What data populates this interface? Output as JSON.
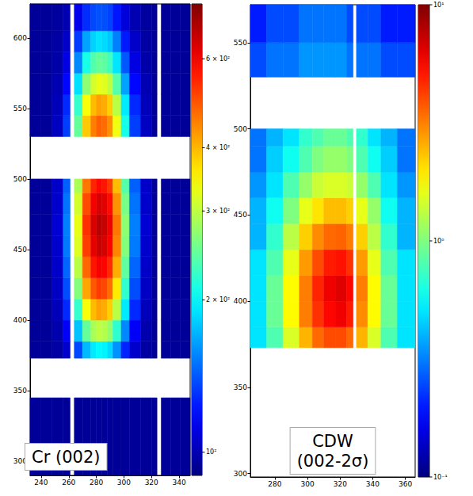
{
  "chart_data": [
    {
      "type": "heatmap",
      "annotation": "Cr (002)",
      "xlim": [
        232,
        348
      ],
      "xticks": [
        240,
        260,
        280,
        300,
        320,
        340
      ],
      "ylim": [
        290,
        624
      ],
      "yticks": [
        300,
        350,
        400,
        450,
        500,
        550,
        600
      ],
      "x_edges": [
        232,
        240,
        248,
        256,
        261,
        264,
        270,
        276,
        280,
        284,
        288,
        292,
        298,
        304,
        312,
        320,
        324,
        327,
        334,
        341,
        348
      ],
      "y_edges": [
        290,
        345,
        373,
        385,
        400,
        415,
        430,
        445,
        460,
        475,
        490,
        500,
        530,
        545,
        560,
        575,
        590,
        605,
        624
      ],
      "cells": [
        [
          95,
          95,
          95,
          95,
          null,
          95,
          95,
          95,
          95,
          95,
          95,
          95,
          95,
          95,
          95,
          95,
          null,
          95,
          95,
          95
        ],
        [
          null,
          null,
          null,
          null,
          null,
          null,
          null,
          null,
          null,
          null,
          null,
          null,
          null,
          null,
          null,
          null,
          null,
          null,
          null,
          null
        ],
        [
          95,
          95,
          97,
          106,
          null,
          137,
          174,
          193,
          200,
          197,
          187,
          160,
          127,
          106,
          97,
          95,
          null,
          95,
          95,
          95
        ],
        [
          95,
          95,
          99,
          116,
          null,
          177,
          249,
          286,
          300,
          294,
          275,
          222,
          157,
          116,
          99,
          95,
          null,
          95,
          95,
          95
        ],
        [
          95,
          95,
          102,
          128,
          null,
          225,
          339,
          397,
          420,
          410,
          381,
          297,
          193,
          128,
          102,
          95,
          null,
          95,
          95,
          95
        ],
        [
          95,
          95,
          104,
          138,
          null,
          265,
          414,
          490,
          520,
          507,
          469,
          359,
          223,
          138,
          104,
          95,
          null,
          95,
          95,
          95
        ],
        [
          95,
          95,
          105,
          146,
          null,
          297,
          474,
          565,
          600,
          585,
          539,
          408,
          247,
          146,
          105,
          95,
          null,
          95,
          95,
          95
        ],
        [
          95,
          95,
          106,
          152,
          null,
          321,
          519,
          620,
          660,
          643,
          592,
          445,
          265,
          152,
          106,
          95,
          null,
          95,
          95,
          95
        ],
        [
          95,
          95,
          107,
          154,
          null,
          329,
          534,
          639,
          680,
          662,
          610,
          458,
          271,
          154,
          107,
          95,
          null,
          95,
          95,
          95
        ],
        [
          95,
          95,
          106,
          150,
          null,
          313,
          504,
          602,
          640,
          624,
          575,
          433,
          259,
          150,
          106,
          95,
          null,
          95,
          95,
          95
        ],
        [
          95,
          95,
          105,
          144,
          null,
          289,
          459,
          546,
          580,
          565,
          522,
          396,
          241,
          144,
          105,
          95,
          null,
          95,
          95,
          95
        ],
        [
          null,
          null,
          null,
          null,
          null,
          null,
          null,
          null,
          null,
          null,
          null,
          null,
          null,
          null,
          null,
          null,
          null,
          null,
          null,
          null
        ],
        [
          95,
          95,
          103,
          134,
          null,
          249,
          384,
          453,
          480,
          468,
          434,
          334,
          211,
          134,
          103,
          95,
          null,
          95,
          95,
          95
        ],
        [
          95,
          95,
          102,
          128,
          null,
          225,
          339,
          397,
          420,
          410,
          381,
          297,
          193,
          128,
          102,
          95,
          null,
          95,
          95,
          95
        ],
        [
          95,
          95,
          100,
          119,
          null,
          189,
          271,
          314,
          330,
          323,
          302,
          241,
          166,
          119,
          100,
          95,
          null,
          95,
          95,
          95
        ],
        [
          95,
          95,
          98,
          111,
          null,
          157,
          211,
          239,
          250,
          245,
          231,
          191,
          142,
          111,
          98,
          95,
          null,
          95,
          95,
          95
        ],
        [
          95,
          95,
          97,
          105,
          null,
          133,
          166,
          183,
          190,
          187,
          179,
          154,
          124,
          105,
          97,
          95,
          null,
          95,
          95,
          95
        ],
        [
          95,
          95,
          96,
          100,
          null,
          113,
          129,
          137,
          140,
          139,
          135,
          123,
          109,
          100,
          96,
          95,
          null,
          95,
          95,
          95
        ]
      ],
      "colorbar": {
        "lim": [
          90,
          770
        ],
        "log": true,
        "ticks": [
          {
            "value": 100,
            "label": "10²"
          },
          {
            "value": 200,
            "label": "2 × 10²"
          },
          {
            "value": 300,
            "label": "3 × 10²"
          },
          {
            "value": 400,
            "label": "4 × 10²"
          },
          {
            "value": 600,
            "label": "6 × 10²"
          }
        ]
      }
    },
    {
      "type": "heatmap",
      "annotation": "CDW (002-2σ)",
      "xlim": [
        265,
        366
      ],
      "xticks": [
        280,
        300,
        320,
        340,
        360
      ],
      "ylim": [
        298,
        572
      ],
      "yticks": [
        300,
        350,
        400,
        450,
        500,
        550
      ],
      "x_edges": [
        265,
        275,
        285,
        295,
        303,
        310,
        317,
        324,
        328,
        330,
        337,
        345,
        355,
        366
      ],
      "y_edges": [
        298,
        373,
        385,
        400,
        415,
        430,
        445,
        460,
        475,
        490,
        500,
        530,
        550,
        572
      ],
      "cells": [
        [
          null,
          null,
          null,
          null,
          null,
          null,
          null,
          null,
          null,
          null,
          null,
          null,
          null
        ],
        [
          0.5,
          0.8,
          1.5,
          2.5,
          3.5,
          4,
          4,
          3.5,
          null,
          2.5,
          1.5,
          0.8,
          0.5
        ],
        [
          0.5,
          0.9,
          1.8,
          3.2,
          4.5,
          5.5,
          6,
          5,
          null,
          3,
          1.8,
          0.9,
          0.5
        ],
        [
          0.5,
          0.9,
          1.8,
          3.2,
          4.8,
          6,
          6.5,
          5.5,
          null,
          3.2,
          1.8,
          0.9,
          0.5
        ],
        [
          0.5,
          0.8,
          1.6,
          2.8,
          4,
          5,
          5.2,
          4.5,
          null,
          2.8,
          1.6,
          0.8,
          0.5
        ],
        [
          0.4,
          0.7,
          1.3,
          2.2,
          3,
          3.5,
          3.6,
          3.2,
          null,
          2.2,
          1.3,
          0.7,
          0.4
        ],
        [
          0.4,
          0.6,
          1,
          1.6,
          2,
          2.4,
          2.4,
          2.2,
          null,
          1.6,
          1.1,
          0.6,
          0.4
        ],
        [
          0.35,
          0.5,
          0.8,
          1.1,
          1.4,
          1.5,
          1.5,
          1.4,
          null,
          1.1,
          0.8,
          0.5,
          0.35
        ],
        [
          0.3,
          0.45,
          0.6,
          0.8,
          1,
          1.1,
          1.1,
          1,
          null,
          0.8,
          0.6,
          0.45,
          0.3
        ],
        [
          0.3,
          0.4,
          0.5,
          0.7,
          0.8,
          0.9,
          0.9,
          0.8,
          null,
          0.7,
          0.5,
          0.4,
          0.3
        ],
        [
          null,
          null,
          null,
          null,
          null,
          null,
          null,
          null,
          null,
          null,
          null,
          null,
          null
        ],
        [
          0.25,
          0.3,
          0.3,
          0.35,
          0.35,
          0.35,
          0.35,
          0.3,
          null,
          0.3,
          0.3,
          0.25,
          0.25
        ],
        [
          0.2,
          0.25,
          0.25,
          0.3,
          0.3,
          0.3,
          0.3,
          0.25,
          null,
          0.25,
          0.25,
          0.2,
          0.2
        ]
      ],
      "colorbar": {
        "lim": [
          0.1,
          10
        ],
        "log": true,
        "ticks": [
          {
            "value": 0.1,
            "label": "10⁻¹"
          },
          {
            "value": 1,
            "label": "10⁰"
          },
          {
            "value": 10,
            "label": "10¹"
          }
        ]
      }
    }
  ]
}
